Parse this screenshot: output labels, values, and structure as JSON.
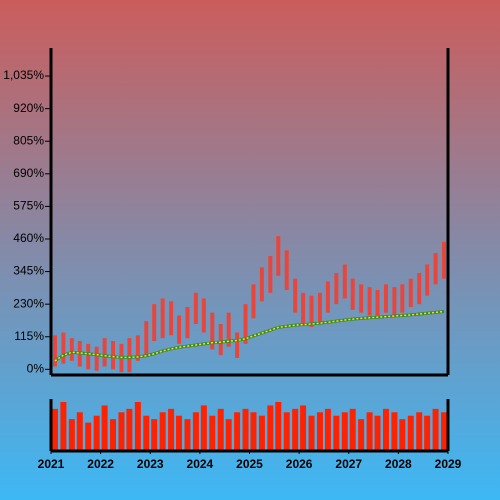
{
  "chart_data": {
    "type": "candlestick",
    "x": [
      2021.08,
      2021.25,
      2021.42,
      2021.58,
      2021.75,
      2021.92,
      2022.08,
      2022.25,
      2022.42,
      2022.58,
      2022.75,
      2022.92,
      2023.08,
      2023.25,
      2023.42,
      2023.58,
      2023.75,
      2023.92,
      2024.08,
      2024.25,
      2024.42,
      2024.58,
      2024.75,
      2024.92,
      2025.08,
      2025.25,
      2025.42,
      2025.58,
      2025.75,
      2025.92,
      2026.08,
      2026.25,
      2026.42,
      2026.58,
      2026.75,
      2026.92,
      2027.08,
      2027.25,
      2027.42,
      2027.58,
      2027.75,
      2027.92,
      2028.08,
      2028.25,
      2028.42,
      2028.58,
      2028.75,
      2028.92
    ],
    "lows": [
      10,
      20,
      30,
      10,
      0,
      -5,
      10,
      0,
      -10,
      -10,
      30,
      50,
      100,
      110,
      120,
      90,
      110,
      160,
      130,
      70,
      50,
      80,
      40,
      90,
      180,
      240,
      270,
      330,
      280,
      200,
      160,
      150,
      160,
      200,
      230,
      250,
      210,
      200,
      190,
      190,
      200,
      190,
      200,
      220,
      230,
      260,
      300,
      320
    ],
    "highs": [
      120,
      130,
      110,
      100,
      90,
      80,
      110,
      100,
      90,
      110,
      120,
      170,
      230,
      250,
      240,
      190,
      220,
      270,
      250,
      200,
      160,
      200,
      130,
      230,
      300,
      360,
      400,
      470,
      420,
      320,
      270,
      260,
      270,
      310,
      340,
      370,
      320,
      300,
      290,
      280,
      300,
      290,
      300,
      320,
      340,
      370,
      410,
      450
    ],
    "color": "#e8463c",
    "ma_values": [
      30,
      50,
      60,
      58,
      55,
      52,
      48,
      45,
      42,
      42,
      44,
      48,
      55,
      65,
      72,
      78,
      82,
      86,
      90,
      94,
      96,
      99,
      102,
      108,
      118,
      128,
      138,
      148,
      152,
      156,
      158,
      160,
      163,
      166,
      170,
      174,
      177,
      180,
      182,
      184,
      186,
      188,
      190,
      192,
      195,
      198,
      201,
      204
    ],
    "ma_color": "#3a8a2a",
    "volume": [
      60,
      70,
      45,
      55,
      40,
      50,
      65,
      45,
      55,
      60,
      70,
      50,
      45,
      55,
      60,
      50,
      45,
      55,
      65,
      50,
      60,
      45,
      55,
      60,
      55,
      50,
      65,
      70,
      55,
      60,
      65,
      50,
      55,
      60,
      50,
      55,
      60,
      45,
      55,
      50,
      60,
      55,
      45,
      50,
      55,
      50,
      60,
      55
    ],
    "volume_color": "#ff2200",
    "xlim": [
      2021,
      2029
    ],
    "xticks": [
      2021,
      2022,
      2023,
      2024,
      2025,
      2026,
      2027,
      2028,
      2029
    ],
    "ylim": [
      -20,
      1134
    ],
    "yticks": [
      {
        "value": 0,
        "label": "0%"
      },
      {
        "value": 115,
        "label": "115%"
      },
      {
        "value": 230,
        "label": "230%"
      },
      {
        "value": 345,
        "label": "345%"
      },
      {
        "value": 460,
        "label": "460%"
      },
      {
        "value": 575,
        "label": "575%"
      },
      {
        "value": 690,
        "label": "690%"
      },
      {
        "value": 805,
        "label": "805%"
      },
      {
        "value": 920,
        "label": "920%"
      },
      {
        "value": 1035,
        "label": "1,035%"
      }
    ]
  }
}
